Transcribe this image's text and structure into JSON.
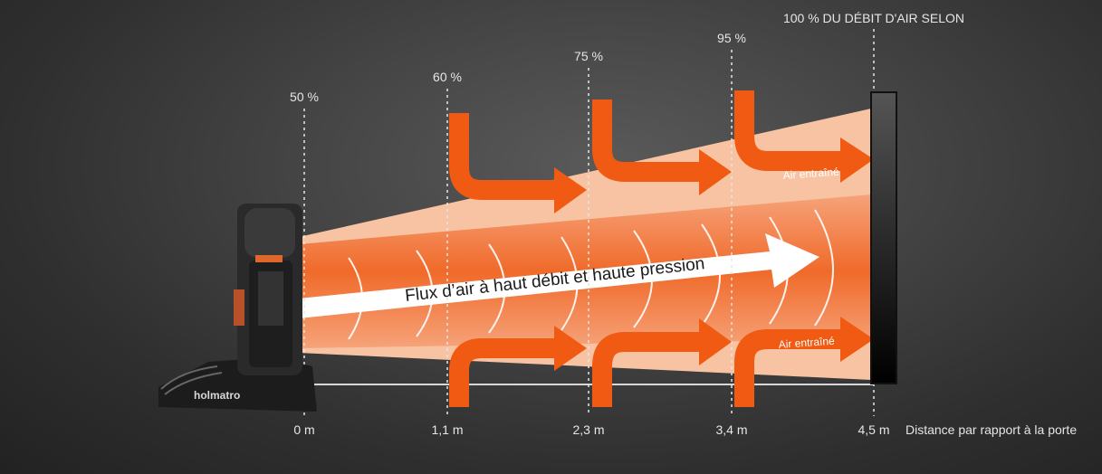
{
  "percentages": [
    "50 %",
    "60 %",
    "75 %",
    "95 %",
    "100 % DU DÉBIT D'AIR SELON"
  ],
  "distances": [
    "0 m",
    "1,1 m",
    "2,3 m",
    "3,4 m",
    "4,5 m"
  ],
  "distance_axis_label": "Distance par rapport à la porte",
  "main_flow_label": "Flux d’air à haut débit et haute pression",
  "entrained_air_top": "Air entraîné",
  "entrained_air_bottom": "Air entraîné",
  "brand": "holmatro",
  "colors": {
    "orange": "#f05a12",
    "light_cone": "#f8c3a2",
    "mid_cone": "#f4956a",
    "white": "#ffffff",
    "text_light": "#e6e6e6"
  }
}
